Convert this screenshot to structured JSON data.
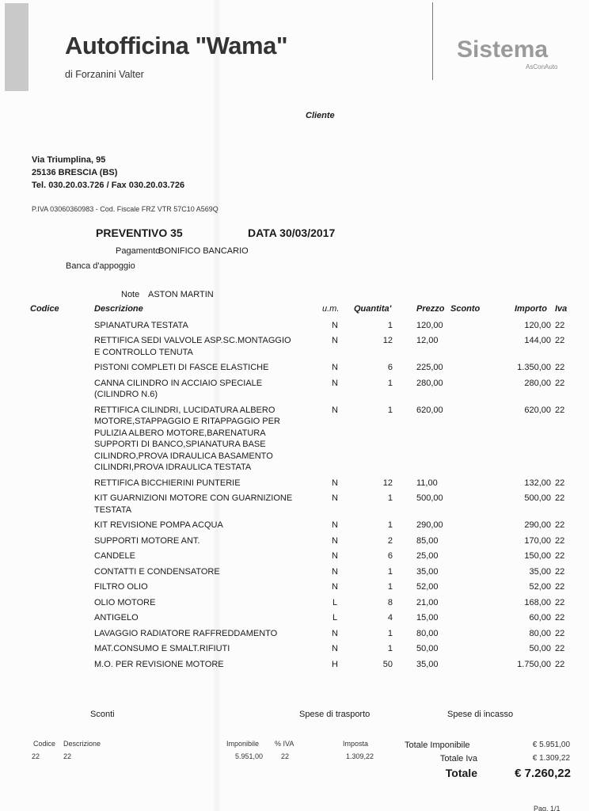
{
  "header": {
    "company": "Autofficina \"Wama\"",
    "owner": "di Forzanini Valter",
    "logo": "Sistema",
    "logo_sub": "AsConAuto",
    "cliente_label": "Cliente"
  },
  "address": {
    "street": "Via Triumplina, 95",
    "city": "25136 BRESCIA (BS)",
    "phone": "Tel. 030.20.03.726 / Fax 030.20.03.726",
    "tax": "P.IVA 03060360983 - Cod. Fiscale FRZ VTR 57C10 A569Q"
  },
  "doc": {
    "preventivo": "PREVENTIVO 35",
    "data": "DATA 30/03/2017",
    "pagamento_label": "Pagamento",
    "pagamento": "BONIFICO BANCARIO",
    "banca_label": "Banca d'appoggio",
    "note_label": "Note",
    "note": "ASTON MARTIN"
  },
  "columns": {
    "codice": "Codice",
    "descrizione": "Descrizione",
    "um": "u.m.",
    "quantita": "Quantita'",
    "prezzo": "Prezzo",
    "sconto": "Sconto",
    "importo": "Importo",
    "iva": "Iva"
  },
  "items": [
    {
      "desc": "SPIANATURA TESTATA",
      "um": "N",
      "qty": "1",
      "prezzo": "120,00",
      "importo": "120,00",
      "iva": "22"
    },
    {
      "desc": "RETTIFICA SEDI VALVOLE ASP.SC.MONTAGGIO\nE CONTROLLO TENUTA",
      "um": "N",
      "qty": "12",
      "prezzo": "12,00",
      "importo": "144,00",
      "iva": "22"
    },
    {
      "desc": "PISTONI COMPLETI DI FASCE ELASTICHE",
      "um": "N",
      "qty": "6",
      "prezzo": "225,00",
      "importo": "1.350,00",
      "iva": "22"
    },
    {
      "desc": "CANNA CILINDRO IN ACCIAIO SPECIALE\n(CILINDRO N.6)",
      "um": "N",
      "qty": "1",
      "prezzo": "280,00",
      "importo": "280,00",
      "iva": "22"
    },
    {
      "desc": "RETTIFICA CILINDRI, LUCIDATURA ALBERO\nMOTORE,STAPPAGGIO E RITAPPAGGIO PER\nPULIZIA ALBERO MOTORE,BARENATURA\nSUPPORTI DI BANCO,SPIANATURA BASE\nCILINDRO,PROVA IDRAULICA BASAMENTO\nCILINDRI,PROVA IDRAULICA TESTATA",
      "um": "N",
      "qty": "1",
      "prezzo": "620,00",
      "importo": "620,00",
      "iva": "22"
    },
    {
      "desc": "RETTIFICA BICCHIERINI PUNTERIE",
      "um": "N",
      "qty": "12",
      "prezzo": "11,00",
      "importo": "132,00",
      "iva": "22"
    },
    {
      "desc": "KIT GUARNIZIONI MOTORE CON GUARNIZIONE\nTESTATA",
      "um": "N",
      "qty": "1",
      "prezzo": "500,00",
      "importo": "500,00",
      "iva": "22"
    },
    {
      "desc": "KIT REVISIONE POMPA ACQUA",
      "um": "N",
      "qty": "1",
      "prezzo": "290,00",
      "importo": "290,00",
      "iva": "22"
    },
    {
      "desc": "SUPPORTI MOTORE ANT.",
      "um": "N",
      "qty": "2",
      "prezzo": "85,00",
      "importo": "170,00",
      "iva": "22"
    },
    {
      "desc": "CANDELE",
      "um": "N",
      "qty": "6",
      "prezzo": "25,00",
      "importo": "150,00",
      "iva": "22"
    },
    {
      "desc": "CONTATTI E CONDENSATORE",
      "um": "N",
      "qty": "1",
      "prezzo": "35,00",
      "importo": "35,00",
      "iva": "22"
    },
    {
      "desc": "FILTRO OLIO",
      "um": "N",
      "qty": "1",
      "prezzo": "52,00",
      "importo": "52,00",
      "iva": "22"
    },
    {
      "desc": "OLIO MOTORE",
      "um": "L",
      "qty": "8",
      "prezzo": "21,00",
      "importo": "168,00",
      "iva": "22"
    },
    {
      "desc": "ANTIGELO",
      "um": "L",
      "qty": "4",
      "prezzo": "15,00",
      "importo": "60,00",
      "iva": "22"
    },
    {
      "desc": "LAVAGGIO RADIATORE RAFFREDDAMENTO",
      "um": "N",
      "qty": "1",
      "prezzo": "80,00",
      "importo": "80,00",
      "iva": "22"
    },
    {
      "desc": "MAT.CONSUMO E SMALT.RIFIUTI",
      "um": "N",
      "qty": "1",
      "prezzo": "50,00",
      "importo": "50,00",
      "iva": "22"
    },
    {
      "desc": "M.O. PER REVISIONE MOTORE",
      "um": "H",
      "qty": "50",
      "prezzo": "35,00",
      "importo": "1.750,00",
      "iva": "22"
    }
  ],
  "footer": {
    "sconti": "Sconti",
    "trasporto": "Spese di trasporto",
    "incasso": "Spese di incasso",
    "codice_label": "Codice",
    "descrizione_label": "Descrizione",
    "imponibile_label": "Imponibile",
    "iva_label": "% IVA",
    "imposta_label": "Imposta",
    "codice": "22",
    "descrizione": "22",
    "imponibile": "5.951,00",
    "iva": "22",
    "imposta": "1.309,22",
    "tot_imponibile_label": "Totale Imponibile",
    "tot_imponibile": "€ 5.951,00",
    "tot_iva_label": "Totale Iva",
    "tot_iva": "€ 1.309,22",
    "totale_label": "Totale",
    "totale": "€ 7.260,22",
    "page": "Pag. 1/1"
  }
}
